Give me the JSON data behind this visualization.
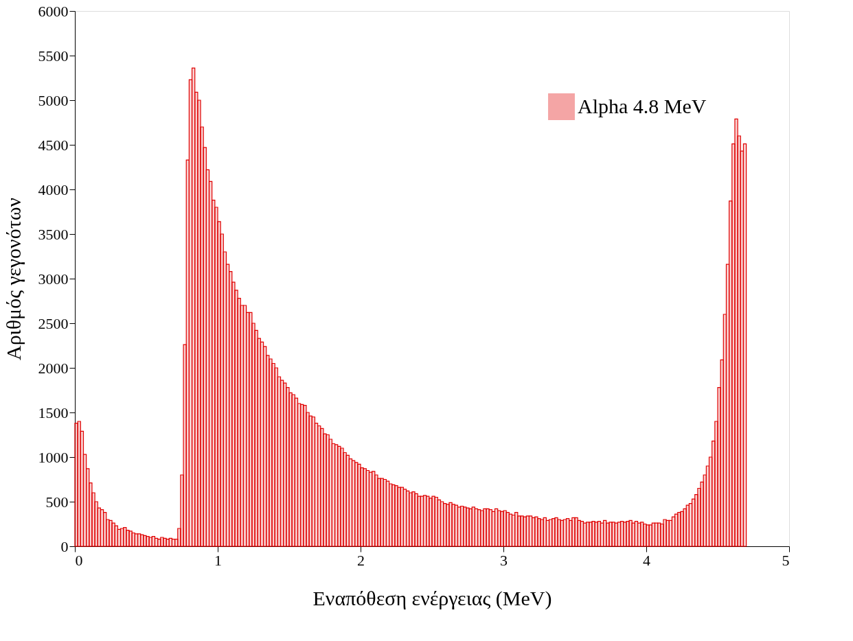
{
  "chart_data": {
    "type": "histogram",
    "xlabel": "Εναπόθεση ενέργειας (MeV)",
    "ylabel": "Αριθμός γεγονότων",
    "xlim": [
      0,
      5
    ],
    "xticks": [
      0,
      1,
      2,
      3,
      4,
      5
    ],
    "ylim": [
      0,
      6000
    ],
    "yticks": [
      0,
      500,
      1000,
      1500,
      2000,
      2500,
      3000,
      3500,
      4000,
      4500,
      5000,
      5500,
      6000
    ],
    "grid": false,
    "legend": "top right",
    "bins": [
      0,
      0.02,
      0.04,
      0.06,
      0.08,
      0.1,
      0.12,
      0.14,
      0.16,
      0.18,
      0.2,
      0.22,
      0.24,
      0.26,
      0.28,
      0.3,
      0.32,
      0.34,
      0.36,
      0.38,
      0.4,
      0.42,
      0.44,
      0.46,
      0.48,
      0.5,
      0.52,
      0.54,
      0.56,
      0.58,
      0.6,
      0.62,
      0.64,
      0.66,
      0.68,
      0.7,
      0.72,
      0.74,
      0.76,
      0.78,
      0.8,
      0.82,
      0.84,
      0.86,
      0.88,
      0.9,
      0.92,
      0.94,
      0.96,
      0.98,
      1,
      1.02,
      1.04,
      1.06,
      1.08,
      1.1,
      1.12,
      1.14,
      1.16,
      1.18,
      1.2,
      1.22,
      1.24,
      1.26,
      1.28,
      1.3,
      1.32,
      1.34,
      1.36,
      1.38,
      1.4,
      1.42,
      1.44,
      1.46,
      1.48,
      1.5,
      1.52,
      1.54,
      1.56,
      1.58,
      1.6,
      1.62,
      1.64,
      1.66,
      1.68,
      1.7,
      1.72,
      1.74,
      1.76,
      1.78,
      1.8,
      1.82,
      1.84,
      1.86,
      1.88,
      1.9,
      1.92,
      1.94,
      1.96,
      1.98,
      2,
      2.02,
      2.04,
      2.06,
      2.08,
      2.1,
      2.12,
      2.14,
      2.16,
      2.18,
      2.2,
      2.22,
      2.24,
      2.26,
      2.28,
      2.3,
      2.32,
      2.34,
      2.36,
      2.38,
      2.4,
      2.42,
      2.44,
      2.46,
      2.48,
      2.5,
      2.52,
      2.54,
      2.56,
      2.58,
      2.6,
      2.62,
      2.64,
      2.66,
      2.68,
      2.7,
      2.72,
      2.74,
      2.76,
      2.78,
      2.8,
      2.82,
      2.84,
      2.86,
      2.88,
      2.9,
      2.92,
      2.94,
      2.96,
      2.98,
      3,
      3.02,
      3.04,
      3.06,
      3.08,
      3.1,
      3.12,
      3.14,
      3.16,
      3.18,
      3.2,
      3.22,
      3.24,
      3.26,
      3.28,
      3.3,
      3.32,
      3.34,
      3.36,
      3.38,
      3.4,
      3.42,
      3.44,
      3.46,
      3.48,
      3.5,
      3.52,
      3.54,
      3.56,
      3.58,
      3.6,
      3.62,
      3.64,
      3.66,
      3.68,
      3.7,
      3.72,
      3.74,
      3.76,
      3.78,
      3.8,
      3.82,
      3.84,
      3.86,
      3.88,
      3.9,
      3.92,
      3.94,
      3.96,
      3.98,
      4,
      4.02,
      4.04,
      4.06,
      4.08,
      4.1,
      4.12,
      4.14,
      4.16,
      4.18,
      4.2,
      4.22,
      4.24,
      4.26,
      4.28,
      4.3,
      4.32,
      4.34,
      4.36,
      4.38,
      4.4,
      4.42,
      4.44,
      4.46,
      4.48,
      4.5,
      4.52,
      4.54,
      4.56,
      4.58,
      4.6,
      4.62,
      4.64,
      4.66,
      4.68,
      4.7
    ],
    "series": [
      {
        "name": "Alpha 4.8 MeV",
        "color": "#e00000",
        "values": [
          1380,
          1400,
          1290,
          1030,
          870,
          710,
          600,
          500,
          430,
          410,
          380,
          300,
          290,
          260,
          230,
          190,
          200,
          210,
          180,
          170,
          150,
          140,
          140,
          130,
          120,
          110,
          100,
          110,
          90,
          80,
          100,
          90,
          80,
          90,
          80,
          80,
          200,
          800,
          2260,
          4330,
          5230,
          5360,
          5090,
          5000,
          4700,
          4470,
          4220,
          4090,
          3880,
          3800,
          3640,
          3500,
          3300,
          3160,
          3080,
          2960,
          2870,
          2780,
          2700,
          2700,
          2620,
          2620,
          2500,
          2420,
          2330,
          2290,
          2240,
          2140,
          2100,
          2050,
          2000,
          1900,
          1860,
          1830,
          1780,
          1720,
          1700,
          1660,
          1600,
          1590,
          1580,
          1500,
          1460,
          1450,
          1380,
          1350,
          1320,
          1260,
          1250,
          1200,
          1150,
          1140,
          1120,
          1100,
          1050,
          1020,
          980,
          960,
          940,
          920,
          880,
          870,
          850,
          830,
          840,
          800,
          760,
          760,
          750,
          730,
          700,
          690,
          680,
          660,
          660,
          640,
          620,
          600,
          610,
          590,
          560,
          560,
          570,
          560,
          540,
          560,
          550,
          520,
          500,
          480,
          470,
          490,
          470,
          460,
          440,
          450,
          440,
          430,
          420,
          440,
          420,
          410,
          400,
          420,
          420,
          410,
          390,
          420,
          400,
          390,
          400,
          380,
          360,
          350,
          380,
          340,
          340,
          330,
          340,
          340,
          320,
          330,
          310,
          300,
          320,
          290,
          300,
          310,
          320,
          300,
          290,
          300,
          310,
          290,
          320,
          320,
          290,
          280,
          260,
          270,
          270,
          280,
          270,
          280,
          260,
          290,
          260,
          270,
          270,
          260,
          270,
          280,
          270,
          280,
          290,
          260,
          280,
          260,
          270,
          250,
          240,
          240,
          260,
          260,
          260,
          250,
          300,
          290,
          290,
          330,
          360,
          380,
          390,
          420,
          460,
          480,
          530,
          580,
          650,
          720,
          800,
          900,
          1000,
          1180,
          1400,
          1780,
          2090,
          2600,
          3160,
          3870,
          4510,
          4790,
          4600,
          4430,
          4510
        ]
      }
    ]
  }
}
